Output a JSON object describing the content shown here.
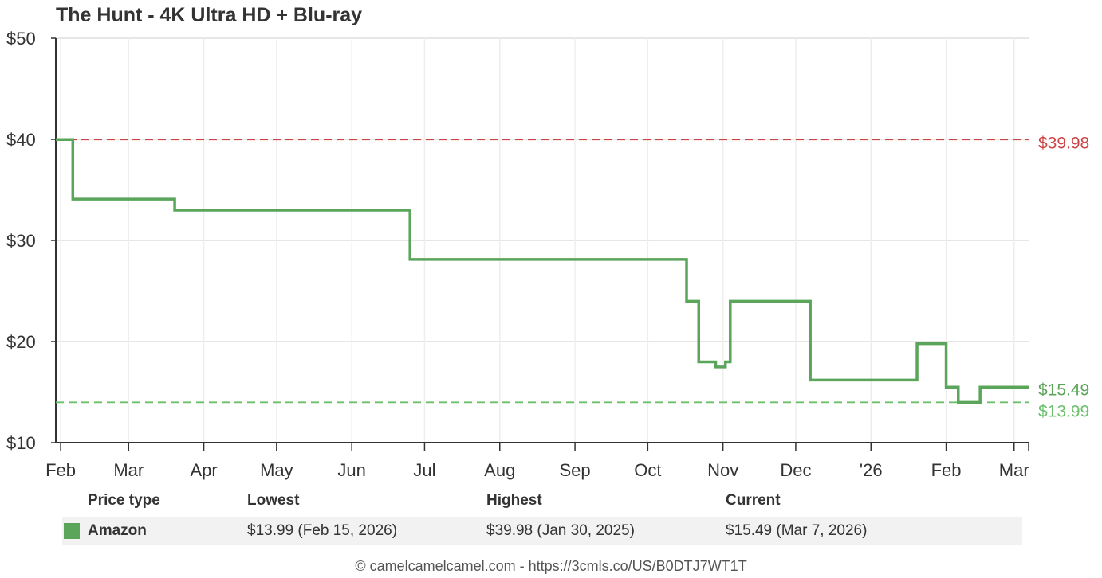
{
  "chart_data": {
    "type": "line",
    "title": "The Hunt - 4K Ultra HD + Blu-ray",
    "ylim": [
      10,
      50
    ],
    "y_ticks": [
      10,
      20,
      30,
      40,
      50
    ],
    "y_tick_labels": [
      "$10",
      "$20",
      "$30",
      "$40",
      "$50"
    ],
    "x_range": [
      "2025-01-30",
      "2026-03-07"
    ],
    "x_ticks": [
      {
        "date": "2025-02-01",
        "label": "Feb"
      },
      {
        "date": "2025-03-01",
        "label": "Mar"
      },
      {
        "date": "2025-04-01",
        "label": "Apr"
      },
      {
        "date": "2025-05-01",
        "label": "May"
      },
      {
        "date": "2025-06-01",
        "label": "Jun"
      },
      {
        "date": "2025-07-01",
        "label": "Jul"
      },
      {
        "date": "2025-08-01",
        "label": "Aug"
      },
      {
        "date": "2025-09-01",
        "label": "Sep"
      },
      {
        "date": "2025-10-01",
        "label": "Oct"
      },
      {
        "date": "2025-11-01",
        "label": "Nov"
      },
      {
        "date": "2025-12-01",
        "label": "Dec"
      },
      {
        "date": "2026-01-01",
        "label": "'26"
      },
      {
        "date": "2026-02-01",
        "label": "Feb"
      },
      {
        "date": "2026-03-01",
        "label": "Mar"
      }
    ],
    "grid": true,
    "series": [
      {
        "name": "Amazon",
        "color": "#5aa55a",
        "step": true,
        "points": [
          [
            "2025-01-30",
            39.98
          ],
          [
            "2025-02-06",
            34.08
          ],
          [
            "2025-03-20",
            32.99
          ],
          [
            "2025-06-25",
            28.12
          ],
          [
            "2025-10-17",
            23.99
          ],
          [
            "2025-10-22",
            17.99
          ],
          [
            "2025-10-29",
            17.49
          ],
          [
            "2025-11-02",
            17.99
          ],
          [
            "2025-11-04",
            23.99
          ],
          [
            "2025-12-07",
            16.19
          ],
          [
            "2026-01-20",
            19.79
          ],
          [
            "2026-02-01",
            15.49
          ],
          [
            "2026-02-06",
            13.99
          ],
          [
            "2026-02-15",
            15.49
          ],
          [
            "2026-03-07",
            15.49
          ]
        ]
      }
    ],
    "reference_lines": [
      {
        "value": 39.98,
        "label": "$39.98",
        "color": "#cc4444",
        "kind": "highest"
      },
      {
        "value": 13.99,
        "label": "$13.99",
        "color": "#6cc06c",
        "kind": "lowest"
      }
    ],
    "end_labels": [
      {
        "value": 15.49,
        "label": "$15.49",
        "color": "#5aa55a"
      }
    ]
  },
  "summary": {
    "headers": {
      "type": "Price type",
      "lowest": "Lowest",
      "highest": "Highest",
      "current": "Current"
    },
    "rows": [
      {
        "type": "Amazon",
        "color": "#5aa55a",
        "lowest": "$13.99 (Feb 15, 2026)",
        "highest": "$39.98 (Jan 30, 2025)",
        "current": "$15.49 (Mar 7, 2026)"
      }
    ]
  },
  "footer": "© camelcamelcamel.com - https://3cmls.co/US/B0DTJ7WT1T"
}
